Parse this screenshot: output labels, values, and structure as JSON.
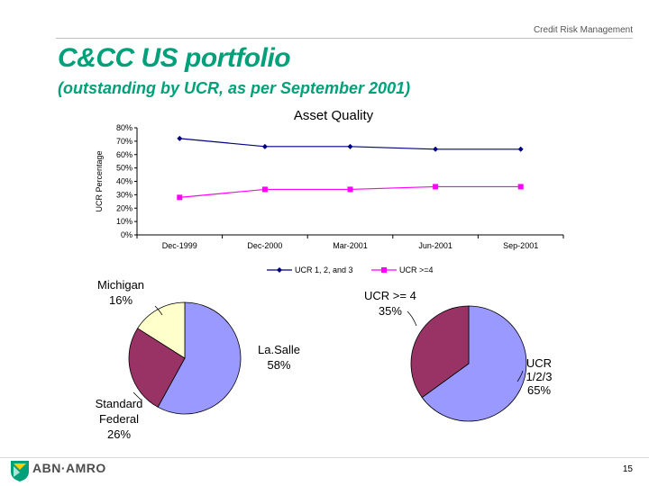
{
  "header": {
    "section_label": "Credit Risk Management"
  },
  "slide": {
    "title": "C&CC US portfolio",
    "subtitle": "(outstanding by UCR, as per September 2001)"
  },
  "footer": {
    "logo_text": "ABN·AMRO",
    "page_number": "15"
  },
  "colors": {
    "title": "#00a07a",
    "series_1": "#000080",
    "series_2": "#ff00ff",
    "pie_lasalle": "#9999ff",
    "pie_standard_federal": "#993366",
    "pie_michigan": "#ffffcc"
  },
  "chart_data": [
    {
      "type": "line",
      "title": "Asset Quality",
      "xlabel": "",
      "ylabel": "UCR Percentage",
      "categories": [
        "Dec-1999",
        "Dec-2000",
        "Mar-2001",
        "Jun-2001",
        "Sep-2001"
      ],
      "ylim": [
        0,
        80
      ],
      "yticks": [
        "0%",
        "10%",
        "20%",
        "30%",
        "40%",
        "50%",
        "60%",
        "70%",
        "80%"
      ],
      "series": [
        {
          "name": "UCR 1, 2, and 3",
          "values": [
            72,
            66,
            66,
            64,
            64
          ],
          "marker": "diamond"
        },
        {
          "name": "UCR >=4",
          "values": [
            28,
            34,
            34,
            36,
            36
          ],
          "marker": "square"
        }
      ],
      "legend": "bottom"
    },
    {
      "type": "pie",
      "title": "",
      "slices": [
        {
          "name": "La.Salle",
          "value": 58,
          "label_name": "La.Salle",
          "label_value": "58%"
        },
        {
          "name": "Standard Federal",
          "value": 26,
          "label_name": "Standard Federal",
          "label_value": "26%"
        },
        {
          "name": "Michigan",
          "value": 16,
          "label_name": "Michigan",
          "label_value": "16%"
        }
      ]
    },
    {
      "type": "pie",
      "title": "",
      "slices": [
        {
          "name": "UCR 1/2/3",
          "value": 65,
          "label_name": "UCR 1/2/3",
          "label_value": "65%"
        },
        {
          "name": "UCR >= 4",
          "value": 35,
          "label_name": "UCR >= 4",
          "label_value": "35%"
        }
      ]
    }
  ]
}
